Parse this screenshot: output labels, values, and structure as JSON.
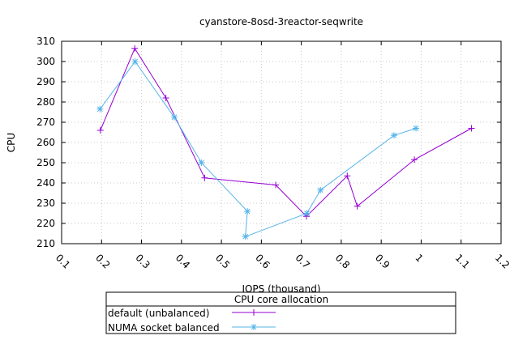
{
  "chart_data": {
    "type": "line",
    "title": "cyanstore-8osd-3reactor-seqwrite",
    "xlabel": "IOPS (thousand)",
    "ylabel": "CPU",
    "xlim": [
      0.1,
      1.2
    ],
    "ylim": [
      210,
      310
    ],
    "xticks": [
      "0.1",
      "0.2",
      "0.3",
      "0.4",
      "0.5",
      "0.6",
      "0.7",
      "0.8",
      "0.9",
      "1",
      "1.1",
      "1.2"
    ],
    "yticks": [
      "210",
      "220",
      "230",
      "240",
      "250",
      "260",
      "270",
      "280",
      "290",
      "300",
      "310"
    ],
    "grid": true,
    "legend": {
      "title": "CPU core allocation",
      "placement": "bottom-center, outside plot"
    },
    "series": [
      {
        "name": "default (unbalanced)",
        "color": "#9400d3",
        "marker": "plus",
        "points": [
          {
            "x": 0.197,
            "y": 266
          },
          {
            "x": 0.283,
            "y": 306.5
          },
          {
            "x": 0.361,
            "y": 282
          },
          {
            "x": 0.458,
            "y": 242.5
          },
          {
            "x": 0.636,
            "y": 239
          },
          {
            "x": 0.713,
            "y": 223.5
          },
          {
            "x": 0.815,
            "y": 243.5
          },
          {
            "x": 0.84,
            "y": 228.5
          },
          {
            "x": 0.983,
            "y": 251.5
          },
          {
            "x": 1.126,
            "y": 267
          }
        ]
      },
      {
        "name": "NUMA socket balanced",
        "color": "#56b4e9",
        "marker": "star",
        "points": [
          {
            "x": 0.196,
            "y": 276.5
          },
          {
            "x": 0.284,
            "y": 300
          },
          {
            "x": 0.382,
            "y": 272.5
          },
          {
            "x": 0.45,
            "y": 250
          },
          {
            "x": 0.565,
            "y": 226
          },
          {
            "x": 0.56,
            "y": 213.5
          },
          {
            "x": 0.714,
            "y": 225
          },
          {
            "x": 0.748,
            "y": 236.5
          },
          {
            "x": 0.932,
            "y": 263.5
          },
          {
            "x": 0.987,
            "y": 267
          }
        ]
      }
    ]
  }
}
